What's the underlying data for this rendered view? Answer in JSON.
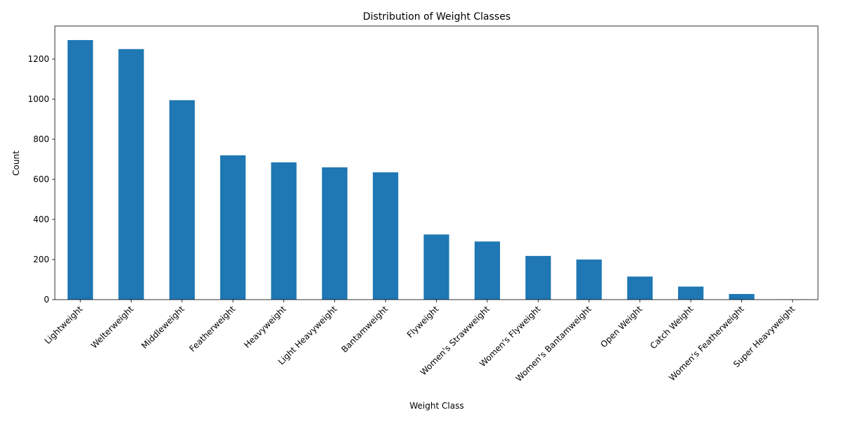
{
  "chart_data": {
    "type": "bar",
    "title": "Distribution of Weight Classes",
    "xlabel": "Weight Class",
    "ylabel": "Count",
    "categories": [
      "Lightweight",
      "Welterweight",
      "Middleweight",
      "Featherweight",
      "Heavyweight",
      "Light Heavyweight",
      "Bantamweight",
      "Flyweight",
      "Women's Strawweight",
      "Women's Flyweight",
      "Women's Bantamweight",
      "Open Weight",
      "Catch Weight",
      "Women's Featherweight",
      "Super Heavyweight"
    ],
    "values": [
      1295,
      1250,
      995,
      720,
      685,
      660,
      635,
      325,
      290,
      218,
      200,
      115,
      65,
      28,
      1
    ],
    "ylim": [
      0,
      1365
    ],
    "yticks": [
      0,
      200,
      400,
      600,
      800,
      1000,
      1200
    ],
    "grid": false,
    "legend": "none",
    "bar_color": "#1f77b4"
  }
}
